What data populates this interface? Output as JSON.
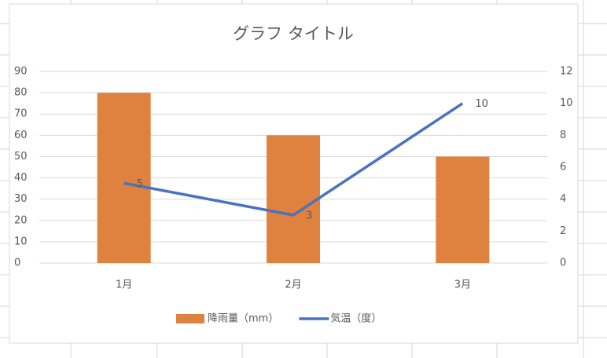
{
  "chart_data": {
    "type": "combo",
    "title": "グラフ タイトル",
    "categories": [
      "1月",
      "2月",
      "3月"
    ],
    "series": [
      {
        "name": "降雨量（mm）",
        "type": "bar",
        "color": "#e0823f",
        "values": [
          80,
          60,
          50
        ]
      },
      {
        "name": "気温（度）",
        "type": "line",
        "axis": "y2",
        "color": "#4a72c0",
        "values": [
          5,
          3,
          10
        ],
        "data_labels": true
      }
    ],
    "ylim": [
      0,
      90
    ],
    "yticks": [
      0,
      10,
      20,
      30,
      40,
      50,
      60,
      70,
      80,
      90
    ],
    "y2lim": [
      0,
      12
    ],
    "y2ticks": [
      0,
      2,
      4,
      6,
      8,
      10,
      12
    ],
    "grid": true,
    "legend": "bottom"
  }
}
